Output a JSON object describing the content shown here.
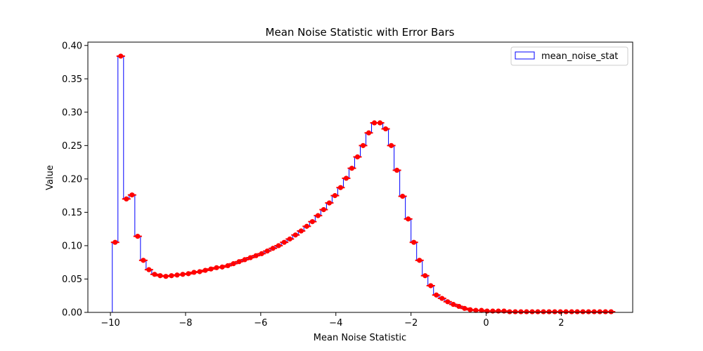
{
  "chart_data": {
    "type": "step",
    "title": "Mean Noise Statistic with Error Bars",
    "xlabel": "Mean Noise Statistic",
    "ylabel": "Value",
    "xlim": [
      -10.6,
      3.9
    ],
    "ylim": [
      0,
      0.405
    ],
    "xticks": [
      -10,
      -8,
      -6,
      -4,
      -2,
      0,
      2
    ],
    "xtick_labels": [
      "−10",
      "−8",
      "−6",
      "−4",
      "−2",
      "0",
      "2"
    ],
    "yticks": [
      0.0,
      0.05,
      0.1,
      0.15,
      0.2,
      0.25,
      0.3,
      0.35,
      0.4
    ],
    "ytick_labels": [
      "0.00",
      "0.05",
      "0.10",
      "0.15",
      "0.20",
      "0.25",
      "0.30",
      "0.35",
      "0.40"
    ],
    "legend": {
      "entries": [
        "mean_noise_stat"
      ],
      "placement": "top-right"
    },
    "series": [
      {
        "name": "mean_noise_stat",
        "style": "step",
        "color": "#0000ff"
      },
      {
        "name": "error bars",
        "style": "errorbar-points",
        "color": "#ff0000"
      }
    ],
    "x_start": -9.95,
    "bin_width": 0.15,
    "values": [
      0.105,
      0.384,
      0.17,
      0.176,
      0.114,
      0.078,
      0.064,
      0.057,
      0.055,
      0.054,
      0.055,
      0.056,
      0.057,
      0.058,
      0.06,
      0.061,
      0.063,
      0.065,
      0.067,
      0.068,
      0.07,
      0.073,
      0.076,
      0.079,
      0.082,
      0.085,
      0.088,
      0.092,
      0.096,
      0.1,
      0.105,
      0.11,
      0.116,
      0.122,
      0.129,
      0.136,
      0.145,
      0.154,
      0.164,
      0.175,
      0.187,
      0.201,
      0.216,
      0.233,
      0.25,
      0.269,
      0.284,
      0.284,
      0.275,
      0.25,
      0.213,
      0.174,
      0.14,
      0.105,
      0.078,
      0.055,
      0.04,
      0.026,
      0.021,
      0.016,
      0.012,
      0.009,
      0.006,
      0.004,
      0.003,
      0.003,
      0.002,
      0.002,
      0.002,
      0.002,
      0.001,
      0.001,
      0.001,
      0.001,
      0.001,
      0.001,
      0.001,
      0.001,
      0.001,
      0.001,
      0.001,
      0.001,
      0.001,
      0.001,
      0.001,
      0.001,
      0.001,
      0.001,
      0.001
    ],
    "colors": {
      "step": "#0000ff",
      "markers": "#ff0000",
      "axes": "#000000",
      "background": "#ffffff"
    }
  }
}
